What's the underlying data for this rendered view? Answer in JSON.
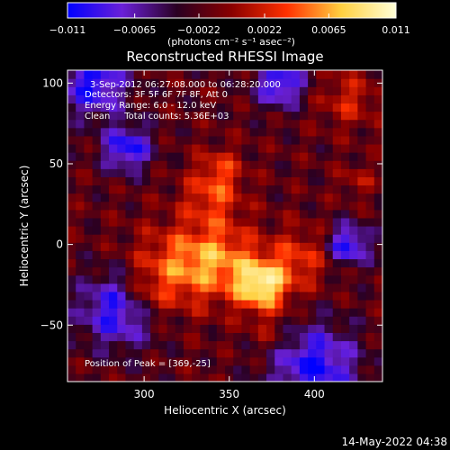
{
  "chart_data": {
    "type": "heatmap",
    "title": "Reconstructed RHESSI Image",
    "xlabel": "Heliocentric X (arcsec)",
    "ylabel": "Heliocentric Y (arcsec)",
    "xlim": [
      255,
      440
    ],
    "ylim": [
      -85,
      108
    ],
    "x_ticks": [
      300,
      350,
      400
    ],
    "y_ticks": [
      -50,
      0,
      50,
      100
    ],
    "colorbar": {
      "range": [
        -0.011,
        0.011
      ],
      "ticks": [
        -0.011,
        -0.0065,
        -0.0022,
        0.0022,
        0.0065,
        0.011
      ],
      "tick_labels": [
        "−0.011",
        "−0.0065",
        "−0.0022",
        "0.0022",
        "0.0065",
        "0.011"
      ],
      "unit": "(photons cm⁻² s⁻¹ asec⁻²)",
      "colors": [
        "#0000ff",
        "#6a20d8",
        "#2a0022",
        "#8a0000",
        "#ff3000",
        "#ffd040",
        "#ffffd8"
      ]
    },
    "annotations": {
      "time_range": "3-Sep-2012 06:27:08.000 to 06:28:20.000",
      "detectors": "Detectors: 3F 5F 6F 7F 8F, Att 0",
      "energy": "Energy Range: 6.0 - 12.0 keV",
      "clean": "Clean     Total counts: 5.36E+03",
      "peak": "Position of Peak = [369,-25]"
    },
    "peak": {
      "x": 369,
      "y": -25,
      "value": 0.011
    }
  },
  "footer": {
    "timestamp": "14-May-2022 04:38"
  }
}
